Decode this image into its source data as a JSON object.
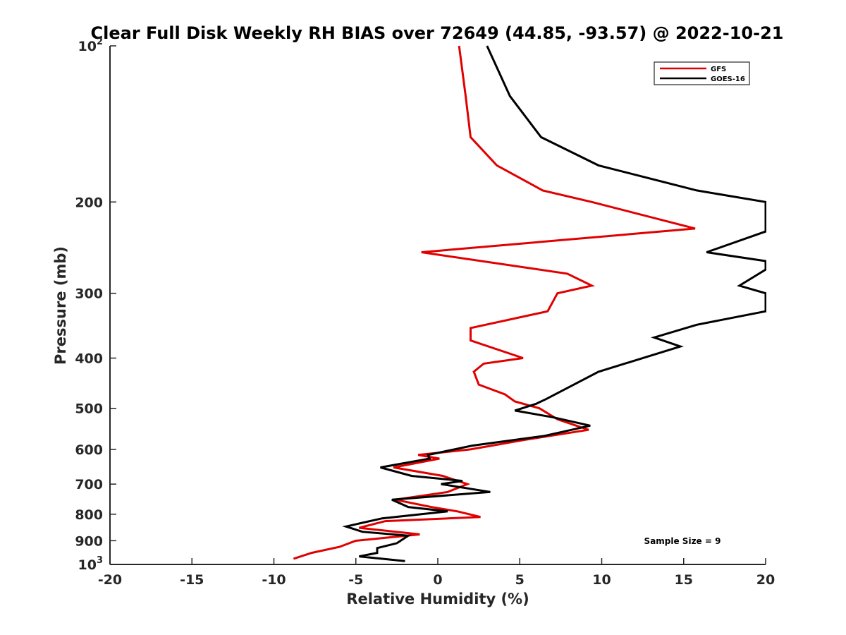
{
  "chart_data": {
    "type": "line",
    "title": "Clear Full Disk Weekly RH BIAS over 72649 (44.85, -93.57) @ 2022-10-21",
    "xlabel": "Relative Humidity (%)",
    "ylabel": "Pressure (mb)",
    "xlim": [
      -20,
      20
    ],
    "ylim": [
      100,
      1000
    ],
    "y_scale": "log",
    "y_reversed": true,
    "xticks": [
      -20,
      -15,
      -10,
      -5,
      0,
      5,
      10,
      15,
      20
    ],
    "yticks": [
      {
        "value": 100,
        "base": "10",
        "exp": "2"
      },
      {
        "value": 200,
        "label": "200"
      },
      {
        "value": 300,
        "label": "300"
      },
      {
        "value": 400,
        "label": "400"
      },
      {
        "value": 500,
        "label": "500"
      },
      {
        "value": 600,
        "label": "600"
      },
      {
        "value": 700,
        "label": "700"
      },
      {
        "value": 800,
        "label": "800"
      },
      {
        "value": 900,
        "label": "900"
      },
      {
        "value": 1000,
        "base": "10",
        "exp": "3"
      }
    ],
    "grid": false,
    "legend_position": "top-right",
    "annotation": "Sample Size = 9",
    "series": [
      {
        "name": "GFS",
        "color": "#e00000",
        "points": [
          [
            1.3,
            100
          ],
          [
            1.7,
            125
          ],
          [
            2.0,
            150
          ],
          [
            3.6,
            170
          ],
          [
            6.4,
            190
          ],
          [
            9.4,
            200
          ],
          [
            15.7,
            225
          ],
          [
            -1.0,
            250
          ],
          [
            7.9,
            275
          ],
          [
            9.4,
            290
          ],
          [
            7.3,
            300
          ],
          [
            6.7,
            325
          ],
          [
            2.0,
            350
          ],
          [
            2.0,
            370
          ],
          [
            5.2,
            400
          ],
          [
            2.8,
            410
          ],
          [
            2.2,
            425
          ],
          [
            2.5,
            450
          ],
          [
            4.1,
            470
          ],
          [
            4.7,
            485
          ],
          [
            6.2,
            500
          ],
          [
            7.3,
            525
          ],
          [
            9.2,
            550
          ],
          [
            5.3,
            575
          ],
          [
            2.0,
            600
          ],
          [
            -1.2,
            615
          ],
          [
            0.1,
            625
          ],
          [
            -2.7,
            650
          ],
          [
            0.3,
            675
          ],
          [
            1.8,
            700
          ],
          [
            0.6,
            725
          ],
          [
            -2.6,
            750
          ],
          [
            -0.4,
            775
          ],
          [
            1.2,
            790
          ],
          [
            2.6,
            810
          ],
          [
            -3.2,
            825
          ],
          [
            -4.8,
            850
          ],
          [
            -1.1,
            875
          ],
          [
            -5.0,
            900
          ],
          [
            -6.0,
            925
          ],
          [
            -7.7,
            950
          ],
          [
            -8.8,
            975
          ]
        ]
      },
      {
        "name": "GOES-16",
        "color": "#000000",
        "points": [
          [
            3.0,
            100
          ],
          [
            4.4,
            125
          ],
          [
            6.3,
            150
          ],
          [
            9.8,
            170
          ],
          [
            15.8,
            190
          ],
          [
            20.0,
            200
          ],
          [
            20.0,
            228
          ],
          [
            16.4,
            250
          ],
          [
            20.0,
            260
          ],
          [
            20.0,
            270
          ],
          [
            18.4,
            290
          ],
          [
            20.0,
            300
          ],
          [
            20.0,
            325
          ],
          [
            15.8,
            345
          ],
          [
            13.2,
            365
          ],
          [
            14.8,
            380
          ],
          [
            9.8,
            425
          ],
          [
            6.6,
            480
          ],
          [
            6.0,
            490
          ],
          [
            4.7,
            505
          ],
          [
            7.0,
            520
          ],
          [
            9.3,
            540
          ],
          [
            6.5,
            565
          ],
          [
            2.1,
            590
          ],
          [
            -0.6,
            615
          ],
          [
            -0.5,
            625
          ],
          [
            -3.5,
            650
          ],
          [
            -1.6,
            675
          ],
          [
            1.5,
            690
          ],
          [
            0.2,
            700
          ],
          [
            3.2,
            725
          ],
          [
            -2.8,
            750
          ],
          [
            -1.8,
            775
          ],
          [
            0.6,
            790
          ],
          [
            -3.4,
            815
          ],
          [
            -5.6,
            845
          ],
          [
            -4.6,
            865
          ],
          [
            -1.8,
            880
          ],
          [
            -2.5,
            910
          ],
          [
            -3.7,
            930
          ],
          [
            -3.7,
            950
          ],
          [
            -4.8,
            965
          ],
          [
            -2.0,
            985
          ]
        ]
      }
    ]
  }
}
